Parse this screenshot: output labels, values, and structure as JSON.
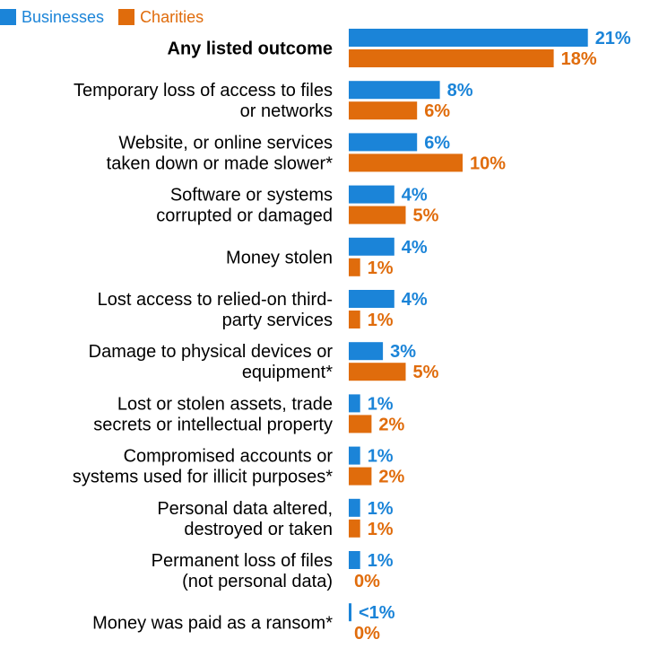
{
  "chart_data": {
    "type": "bar",
    "orientation": "horizontal",
    "legend_position": "top-left",
    "categories": [
      "Any listed outcome",
      "Temporary loss of access to files or networks",
      "Website, or online services taken down or made slower*",
      "Software or systems corrupted or damaged",
      "Money stolen",
      "Lost access to relied-on third-party services",
      "Damage to physical devices or equipment*",
      "Lost or stolen assets, trade secrets or intellectual property",
      "Compromised accounts or systems used for illicit purposes*",
      "Personal data altered, destroyed or taken",
      "Permanent loss of files (not personal data)",
      "Money was paid as a ransom*"
    ],
    "category_lines": [
      [
        "Any listed outcome"
      ],
      [
        "Temporary loss of access to files",
        "or networks"
      ],
      [
        "Website, or online services",
        "taken down or made slower*"
      ],
      [
        "Software or systems",
        "corrupted or damaged"
      ],
      [
        "Money stolen"
      ],
      [
        "Lost access to relied-on third-",
        "party services"
      ],
      [
        "Damage to physical devices or",
        "equipment*"
      ],
      [
        "Lost or stolen assets, trade",
        "secrets or intellectual property"
      ],
      [
        "Compromised accounts or",
        "systems used for illicit purposes*"
      ],
      [
        "Personal data altered,",
        "destroyed or taken"
      ],
      [
        "Permanent loss of files",
        "(not personal data)"
      ],
      [
        "Money was paid as a ransom*"
      ]
    ],
    "series": [
      {
        "name": "Businesses",
        "color": "#1b84d8",
        "values": [
          21,
          8,
          6,
          4,
          4,
          4,
          3,
          1,
          1,
          1,
          1,
          0.3
        ],
        "labels": [
          "21%",
          "8%",
          "6%",
          "4%",
          "4%",
          "4%",
          "3%",
          "1%",
          "1%",
          "1%",
          "1%",
          "<1%"
        ]
      },
      {
        "name": "Charities",
        "color": "#e06c0c",
        "values": [
          18,
          6,
          10,
          5,
          1,
          1,
          5,
          2,
          2,
          1,
          0,
          0
        ],
        "labels": [
          "18%",
          "6%",
          "10%",
          "5%",
          "1%",
          "1%",
          "5%",
          "2%",
          "2%",
          "1%",
          "0%",
          "0%"
        ]
      }
    ],
    "xlim": [
      0,
      21
    ],
    "title": "",
    "xlabel": "",
    "ylabel": ""
  }
}
